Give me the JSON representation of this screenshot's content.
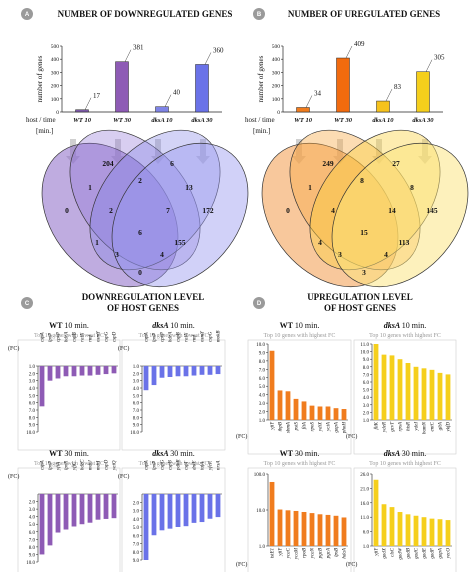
{
  "panels": {
    "A": {
      "letter": "A",
      "title": "NUMBER OF DOWNREGULATED GENES",
      "ylabel": "number of genes",
      "host_time_label": "host / time",
      "min_label": "[min.]",
      "venn_values": [
        "204",
        "6",
        "1",
        "2",
        "13",
        "0",
        "2",
        "7",
        "172",
        "1",
        "6",
        "155",
        "3",
        "4",
        "0"
      ]
    },
    "B": {
      "letter": "B",
      "title": "NUMBER OF UREGULATED GENES",
      "ylabel": "number of genes",
      "host_time_label": "host / time",
      "min_label": "[min.]",
      "venn_values": [
        "249",
        "27",
        "1",
        "8",
        "8",
        "0",
        "4",
        "14",
        "145",
        "4",
        "15",
        "113",
        "3",
        "4",
        "3"
      ]
    },
    "C": {
      "letter": "C",
      "title_line1": "DOWNREGULATION LEVEL",
      "title_line2": "OF HOST GENES",
      "sub_titles": [
        {
          "strain": "WT",
          "time": "10 min.",
          "note": "Top 10 genes with lowest FC"
        },
        {
          "strain": "dksA",
          "time": "10 min.",
          "note": "Top 10 genes with lowest FC"
        },
        {
          "strain": "WT",
          "time": "30 min.",
          "note": "Top 10 genes with lowest FC"
        },
        {
          "strain": "dksA",
          "time": "30 min.",
          "note": "Top 10 genes with lowest FC"
        }
      ],
      "fc_label": "(FC)"
    },
    "D": {
      "letter": "D",
      "title_line1": "UPREGULATION LEVEL",
      "title_line2": "OF HOST GENES",
      "sub_titles": [
        {
          "strain": "WT",
          "time": "10 min.",
          "note": "Top 10 genes with highest FC"
        },
        {
          "strain": "dksA",
          "time": "10 min.",
          "note": "Top 10 genes with highest FC"
        },
        {
          "strain": "WT",
          "time": "30 min.",
          "note": "Top 10 genes with highest FC"
        },
        {
          "strain": "dksA",
          "time": "30 min.",
          "note": "Top 10 genes with highest FC"
        }
      ],
      "fc_label": "(FC)"
    }
  },
  "colors": {
    "panel_letter_bg": "#9a9a9a",
    "down_wt": "#8e5bb5",
    "down_dksa": "#6a72e8",
    "up_wt": "#f07c1e",
    "up_dksa": "#f5cf1c"
  },
  "chart_data": [
    {
      "id": "A-bar",
      "type": "bar",
      "categories": [
        "WT 10",
        "WT 30",
        "dksA 10",
        "dksA 30"
      ],
      "values": [
        17,
        381,
        40,
        360
      ],
      "ylabel": "number of genes",
      "ylim": [
        0,
        500
      ],
      "yticks": [
        0,
        100,
        200,
        300,
        400,
        500
      ]
    },
    {
      "id": "B-bar",
      "type": "bar",
      "categories": [
        "WT 10",
        "WT 30",
        "dksA 10",
        "dksA 30"
      ],
      "values": [
        34,
        409,
        83,
        305
      ],
      "ylabel": "number of genes",
      "ylim": [
        0,
        500
      ],
      "yticks": [
        0,
        100,
        200,
        300,
        400,
        500
      ]
    },
    {
      "id": "C-WT10",
      "type": "bar",
      "genes": [
        "cspA",
        "lpxP",
        "cpxP",
        "hdeA",
        "cspB",
        "raiA",
        "rmf",
        "osmY",
        "cspG",
        "cspD"
      ],
      "values": [
        6.5,
        3.0,
        2.7,
        2.4,
        2.4,
        2.3,
        2.3,
        2.2,
        2.1,
        2.0
      ],
      "ylim": [
        1.0,
        10.0
      ],
      "yticks": [
        "1.0",
        "2.0",
        "3.0",
        "4.0",
        "5.0",
        "6.0",
        "7.0",
        "8.0",
        "9.0",
        "10.0"
      ]
    },
    {
      "id": "C-dksA10",
      "type": "bar",
      "genes": [
        "cspA",
        "lpxP",
        "cpxP",
        "hdeA",
        "cspB",
        "raiA",
        "rmf",
        "osmY",
        "cspG",
        "mokB"
      ],
      "values": [
        4.3,
        3.6,
        2.6,
        2.5,
        2.4,
        2.4,
        2.3,
        2.2,
        2.2,
        2.1
      ],
      "ylim": [
        1.0,
        10.0
      ],
      "yticks": [
        "1.0",
        "2.0",
        "3.0",
        "4.0",
        "5.0",
        "6.0",
        "7.0",
        "8.0",
        "9.0",
        "10.0"
      ]
    },
    {
      "id": "C-WT30",
      "type": "bar",
      "genes": [
        "cspA",
        "lpxP",
        "yfiA",
        "lpxR",
        "yfjC",
        "hdeC",
        "mdtJ",
        "mdtI",
        "cspD",
        "yeiQ"
      ],
      "values": [
        9.0,
        7.8,
        6.1,
        5.7,
        5.3,
        5.0,
        4.8,
        4.4,
        4.3,
        4.2
      ],
      "ylim": [
        1.0,
        10.0
      ],
      "yticks": [
        "2.0",
        "3.0",
        "4.0",
        "5.0",
        "6.0",
        "7.0",
        "8.0",
        "9.0",
        "10.0"
      ]
    },
    {
      "id": "C-dksA30",
      "type": "bar",
      "genes": [
        "cspA",
        "lpxP",
        "cspG",
        "cspB",
        "pdhR",
        "cspI",
        "dnlE",
        "tufA",
        "yfeR",
        "nrsA"
      ],
      "values": [
        9.0,
        6.0,
        5.4,
        5.2,
        5.0,
        4.9,
        4.5,
        4.4,
        4.0,
        3.8
      ],
      "ylim": [
        1.0,
        9.0
      ],
      "yticks": [
        "2.0",
        "3.0",
        "4.0",
        "5.0",
        "6.0",
        "7.0",
        "8.0",
        "9.0"
      ]
    },
    {
      "id": "D-WT10",
      "type": "bar",
      "genes": [
        "yjiY",
        "ibpB",
        "sbmA",
        "pstS",
        "fliA",
        "rpoS",
        "ydiX",
        "yciA",
        "gapA",
        "phoH"
      ],
      "values": [
        9.2,
        4.5,
        4.4,
        3.5,
        3.2,
        2.7,
        2.6,
        2.6,
        2.4,
        2.3
      ],
      "ylim": [
        1.0,
        10.0
      ],
      "yticks": [
        "1.0",
        "2.0",
        "3.0",
        "4.0",
        "5.0",
        "6.0",
        "7.0",
        "8.0",
        "9.0",
        "10.0"
      ]
    },
    {
      "id": "D-dksA10",
      "type": "bar",
      "genes": [
        "fliK",
        "ydeR",
        "gcvT",
        "rpsA",
        "hisR",
        "ydeI",
        "bamN",
        "entC",
        "gltA",
        "ykfD"
      ],
      "values": [
        11.0,
        9.6,
        9.5,
        9.0,
        8.5,
        8.0,
        7.8,
        7.6,
        7.2,
        7.0
      ],
      "ylim": [
        1.0,
        11.0
      ],
      "yticks": [
        "1.0",
        "2.0",
        "3.0",
        "4.0",
        "5.0",
        "6.0",
        "7.0",
        "8.0",
        "9.0",
        "10.0",
        "11.0"
      ]
    },
    {
      "id": "D-WT30",
      "type": "bar",
      "genes": [
        "istE1",
        "yjiY",
        "ycaC",
        "ycaM",
        "rpoB",
        "ycaN",
        "pgcB",
        "pgcA",
        "lpsB",
        "hdaA"
      ],
      "values": [
        60,
        10.3,
        9.8,
        9.4,
        8.8,
        8.2,
        7.6,
        7.3,
        6.9,
        6.2
      ],
      "ylim": [
        1.0,
        100.0
      ],
      "scale": "log",
      "yticks": [
        "1.0",
        "10.0",
        "100.0"
      ]
    },
    {
      "id": "D-dksA30",
      "type": "bar",
      "genes": [
        "yjiY",
        "gadX",
        "clsC",
        "gadW",
        "gadB",
        "gadC",
        "gadE",
        "gadF",
        "gapA",
        "yecO"
      ],
      "values": [
        24.0,
        15.5,
        14.5,
        12.8,
        12.0,
        11.5,
        11.0,
        10.5,
        10.3,
        10.0
      ],
      "ylim": [
        1.0,
        26.0
      ],
      "yticks": [
        "1.0",
        "6.0",
        "11.0",
        "16.0",
        "21.0",
        "26.0"
      ]
    }
  ]
}
